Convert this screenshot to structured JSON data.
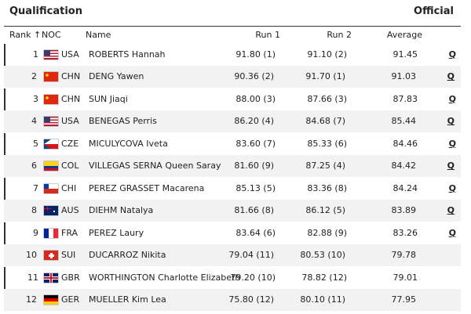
{
  "header": {
    "title": "Qualification",
    "status": "Official"
  },
  "table": {
    "columns": [
      "Rank ↑",
      "NOC",
      "Name",
      "Run 1",
      "Run 2",
      "Average"
    ],
    "rows": [
      {
        "rank": 1,
        "noc": "USA",
        "name": "ROBERTS Hannah",
        "run1": "91.80 (1)",
        "run2": "91.10 (2)",
        "average": 91.45,
        "q": "Q"
      },
      {
        "rank": 2,
        "noc": "CHN",
        "name": "DENG Yawen",
        "run1": "90.36 (2)",
        "run2": "91.70 (1)",
        "average": 91.03,
        "q": "Q"
      },
      {
        "rank": 3,
        "noc": "CHN",
        "name": "SUN Jiaqi",
        "run1": "88.00 (3)",
        "run2": "87.66 (3)",
        "average": 87.83,
        "q": "Q"
      },
      {
        "rank": 4,
        "noc": "USA",
        "name": "BENEGAS Perris",
        "run1": "86.20 (4)",
        "run2": "84.68 (7)",
        "average": 85.44,
        "q": "Q"
      },
      {
        "rank": 5,
        "noc": "CZE",
        "name": "MICULYCOVA Iveta",
        "run1": "83.60 (7)",
        "run2": "85.33 (6)",
        "average": 84.46,
        "q": "Q"
      },
      {
        "rank": 6,
        "noc": "COL",
        "name": "VILLEGAS SERNA Queen Saray",
        "run1": "81.60 (9)",
        "run2": "87.25 (4)",
        "average": 84.42,
        "q": "Q"
      },
      {
        "rank": 7,
        "noc": "CHI",
        "name": "PEREZ GRASSET Macarena",
        "run1": "85.13 (5)",
        "run2": "83.36 (8)",
        "average": 84.24,
        "q": "Q"
      },
      {
        "rank": 8,
        "noc": "AUS",
        "name": "DIEHM Natalya",
        "run1": "81.66 (8)",
        "run2": "86.12 (5)",
        "average": 83.89,
        "q": "Q"
      },
      {
        "rank": 9,
        "noc": "FRA",
        "name": "PEREZ Laury",
        "run1": "83.64 (6)",
        "run2": "82.88 (9)",
        "average": 83.26,
        "q": "Q"
      },
      {
        "rank": 10,
        "noc": "SUI",
        "name": "DUCARROZ Nikita",
        "run1": "79.04 (11)",
        "run2": "80.53 (10)",
        "average": 79.78
      },
      {
        "rank": 11,
        "noc": "GBR",
        "name": "WORTHINGTON Charlotte Elizabeth",
        "run1": "79.20 (10)",
        "run2": "78.82 (12)",
        "average": 79.01
      },
      {
        "rank": 12,
        "noc": "GER",
        "name": "MUELLER Kim Lea",
        "run1": "75.80 (12)",
        "run2": "80.10 (11)",
        "average": 77.95
      }
    ]
  }
}
